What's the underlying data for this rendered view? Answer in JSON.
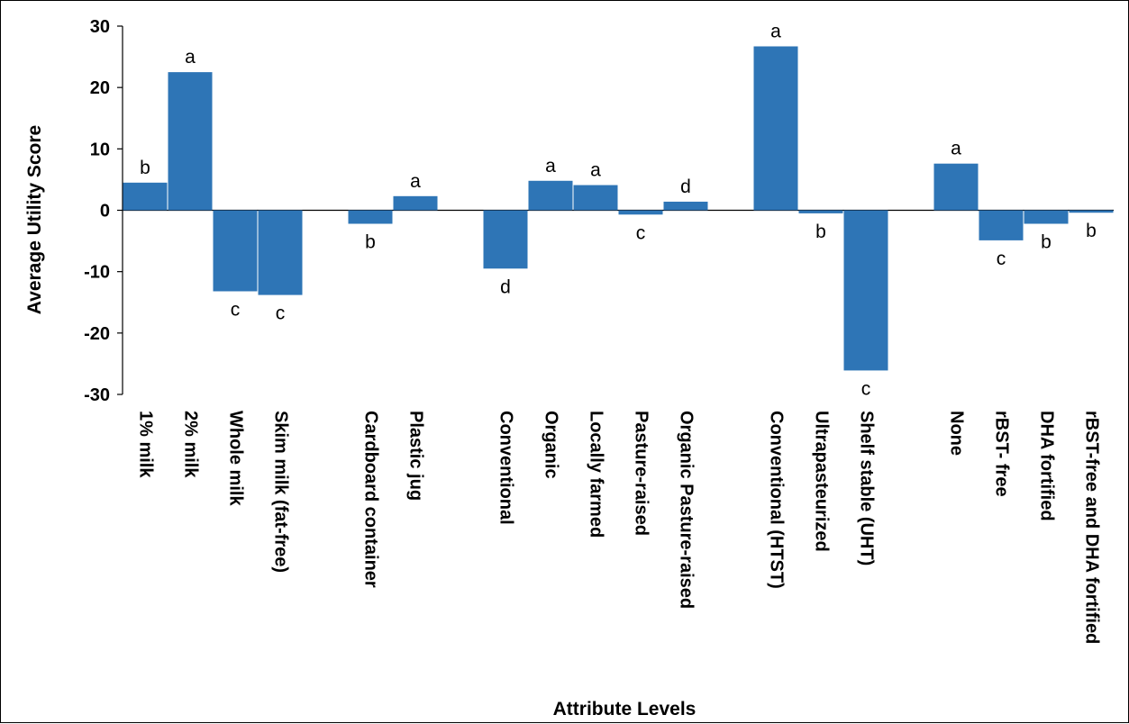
{
  "chart_data": {
    "type": "bar",
    "xlabel": "Attribute Levels",
    "ylabel": "Average Utility Score",
    "ylim": [
      -30,
      30
    ],
    "yticks": [
      "30",
      "20",
      "10",
      "0",
      "-10",
      "-20",
      "-30"
    ],
    "bar_color": "#2e75b6",
    "grid": false,
    "legend": "none",
    "groups": [
      {
        "categories": [
          "1% milk",
          "2% milk",
          "Whole milk",
          "Skim milk (fat-free)"
        ],
        "values": [
          4.5,
          22.5,
          -13.2,
          -13.8
        ],
        "letters": [
          "b",
          "a",
          "c",
          "c"
        ]
      },
      {
        "categories": [
          "Cardboard container",
          "Plastic jug"
        ],
        "values": [
          -2.2,
          2.3
        ],
        "letters": [
          "b",
          "a"
        ]
      },
      {
        "categories": [
          "Conventional",
          "Organic",
          "Locally farmed",
          "Pasture-raised",
          "Organic Pasture-raised"
        ],
        "values": [
          -9.5,
          4.8,
          4.1,
          -0.7,
          1.4
        ],
        "letters": [
          "d",
          "a",
          "a",
          "c",
          "d"
        ]
      },
      {
        "categories": [
          "Conventional (HTST)",
          "Ultrapasteurized",
          "Shelf stable (UHT)"
        ],
        "values": [
          26.7,
          -0.5,
          -26.1
        ],
        "letters": [
          "a",
          "b",
          "c"
        ]
      },
      {
        "categories": [
          "None",
          "rBST- free",
          "DHA fortified",
          "rBST-free and DHA fortified"
        ],
        "values": [
          7.6,
          -4.9,
          -2.2,
          -0.4
        ],
        "letters": [
          "a",
          "c",
          "b",
          "b"
        ]
      }
    ]
  }
}
